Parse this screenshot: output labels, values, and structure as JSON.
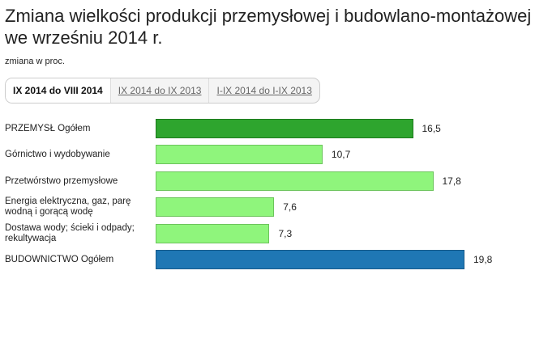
{
  "title": "Zmiana wielkości produkcji przemysłowej i budowlano-montażowej we wrześniu 2014 r.",
  "subtitle": "zmiana w proc.",
  "tabs": [
    {
      "label": "IX 2014 do VIII 2014",
      "active": true
    },
    {
      "label": "IX 2014 do IX 2013",
      "active": false
    },
    {
      "label": "I-IX 2014 do I-IX 2013",
      "active": false
    }
  ],
  "chart_data": {
    "type": "bar",
    "orientation": "horizontal",
    "categories": [
      "PRZEMYSŁ Ogółem",
      "Górnictwo i wydobywanie",
      "Przetwórstwo przemysłowe",
      "Energia elektryczna, gaz, parę wodną i gorącą wodę",
      "Dostawa wody; ścieki i odpady; rekultywacja",
      "BUDOWNICTWO Ogółem"
    ],
    "values": [
      16.5,
      10.7,
      17.8,
      7.6,
      7.3,
      19.8
    ],
    "data_labels": [
      "16,5",
      "10,7",
      "17,8",
      "7,6",
      "7,3",
      "19,8"
    ],
    "colors": [
      "#2ea52e",
      "#8ff57c",
      "#8ff57c",
      "#8ff57c",
      "#8ff57c",
      "#1f77b4"
    ],
    "border_colors": [
      "#1d7a1d",
      "#6cc45c",
      "#6cc45c",
      "#6cc45c",
      "#6cc45c",
      "#175a8a"
    ],
    "xlim": [
      0,
      19.8
    ],
    "grid": false
  }
}
